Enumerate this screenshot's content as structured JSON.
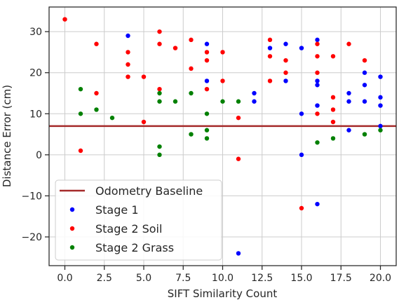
{
  "chart_data": {
    "type": "scatter",
    "xlabel": "SIFT Similarity Count",
    "ylabel": "Distance Error (cm)",
    "xlim": [
      -1,
      21
    ],
    "ylim": [
      -27,
      36
    ],
    "xticks": [
      0,
      2.5,
      5,
      7.5,
      10,
      12.5,
      15,
      17.5,
      20
    ],
    "xtick_labels": [
      "0.0",
      "2.5",
      "5.0",
      "7.5",
      "10.0",
      "12.5",
      "15.0",
      "17.5",
      "20.0"
    ],
    "yticks": [
      -20,
      -10,
      0,
      10,
      20,
      30
    ],
    "ytick_labels": [
      "−20",
      "−10",
      "0",
      "10",
      "20",
      "30"
    ],
    "grid": true,
    "legend_position": "lower-left",
    "baseline": {
      "name": "Odometry Baseline",
      "y": 7,
      "color": "#a52a2a"
    },
    "series": [
      {
        "name": "Stage 1",
        "color": "#0000ff",
        "points": [
          [
            4,
            29
          ],
          [
            9,
            27
          ],
          [
            9,
            18
          ],
          [
            11,
            -24
          ],
          [
            12,
            15
          ],
          [
            12,
            13
          ],
          [
            13,
            26
          ],
          [
            14,
            27
          ],
          [
            14,
            18
          ],
          [
            15,
            26
          ],
          [
            15,
            10
          ],
          [
            15,
            0
          ],
          [
            16,
            28
          ],
          [
            16,
            18
          ],
          [
            16,
            17
          ],
          [
            16,
            12
          ],
          [
            16,
            -12
          ],
          [
            18,
            15
          ],
          [
            18,
            13
          ],
          [
            18,
            6
          ],
          [
            19,
            20
          ],
          [
            19,
            17
          ],
          [
            19,
            13
          ],
          [
            20,
            19
          ],
          [
            20,
            14
          ],
          [
            20,
            12
          ],
          [
            20,
            7
          ]
        ]
      },
      {
        "name": "Stage 2 Soil",
        "color": "#ff0000",
        "points": [
          [
            0,
            33
          ],
          [
            1,
            1
          ],
          [
            2,
            27
          ],
          [
            2,
            15
          ],
          [
            4,
            25
          ],
          [
            4,
            22
          ],
          [
            4,
            19
          ],
          [
            5,
            19
          ],
          [
            5,
            8
          ],
          [
            6,
            30
          ],
          [
            6,
            27
          ],
          [
            6,
            16
          ],
          [
            7,
            26
          ],
          [
            8,
            28
          ],
          [
            8,
            21
          ],
          [
            9,
            25
          ],
          [
            9,
            23
          ],
          [
            9,
            16
          ],
          [
            10,
            25
          ],
          [
            10,
            18
          ],
          [
            11,
            9
          ],
          [
            11,
            -1
          ],
          [
            13,
            28
          ],
          [
            13,
            24
          ],
          [
            13,
            18
          ],
          [
            14,
            23
          ],
          [
            14,
            20
          ],
          [
            15,
            -13
          ],
          [
            16,
            27
          ],
          [
            16,
            24
          ],
          [
            16,
            20
          ],
          [
            16,
            10
          ],
          [
            17,
            24
          ],
          [
            17,
            14
          ],
          [
            17,
            11
          ],
          [
            17,
            8
          ],
          [
            18,
            27
          ],
          [
            19,
            23
          ]
        ]
      },
      {
        "name": "Stage 2 Grass",
        "color": "#008000",
        "points": [
          [
            1,
            16
          ],
          [
            1,
            10
          ],
          [
            2,
            11
          ],
          [
            3,
            9
          ],
          [
            6,
            15
          ],
          [
            6,
            13
          ],
          [
            6,
            2
          ],
          [
            6,
            0
          ],
          [
            7,
            13
          ],
          [
            8,
            15
          ],
          [
            8,
            5
          ],
          [
            9,
            10
          ],
          [
            9,
            6
          ],
          [
            9,
            4
          ],
          [
            10,
            13
          ],
          [
            11,
            13
          ],
          [
            16,
            3
          ],
          [
            17,
            4
          ],
          [
            19,
            5
          ],
          [
            20,
            6
          ]
        ]
      }
    ]
  }
}
